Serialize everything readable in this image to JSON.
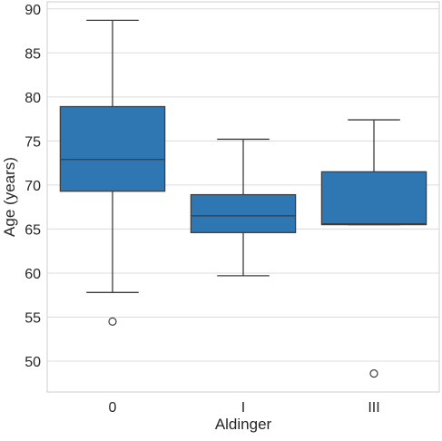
{
  "chart_data": {
    "type": "box",
    "title": "",
    "xlabel": "Aldinger",
    "ylabel": "Age (years)",
    "categories": [
      "0",
      "I",
      "III"
    ],
    "ylim": [
      46.5,
      90.8
    ],
    "yticks": [
      50,
      55,
      60,
      65,
      70,
      75,
      80,
      85,
      90
    ],
    "grid": true,
    "box_color": "#2f77b2",
    "boxes": [
      {
        "category": "0",
        "whisker_low": 57.8,
        "q1": 69.3,
        "median": 72.9,
        "q3": 78.9,
        "whisker_high": 88.7,
        "outliers": [
          54.5
        ]
      },
      {
        "category": "I",
        "whisker_low": 59.7,
        "q1": 64.6,
        "median": 66.5,
        "q3": 68.9,
        "whisker_high": 75.2,
        "outliers": []
      },
      {
        "category": "III",
        "whisker_low": 65.5,
        "q1": 65.5,
        "median": 65.6,
        "q3": 71.5,
        "whisker_high": 77.4,
        "outliers": [
          48.6
        ]
      }
    ]
  }
}
